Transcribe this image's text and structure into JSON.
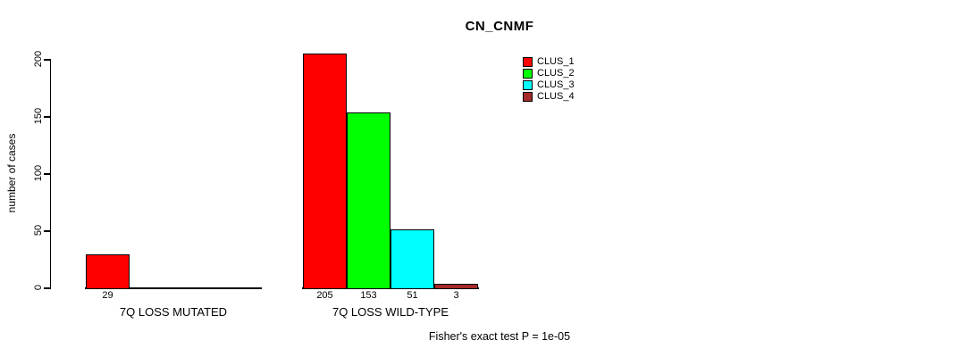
{
  "chart_data": {
    "type": "bar",
    "title": "CN_CNMF",
    "ylabel": "number of cases",
    "xlabel": "",
    "yticks": [
      0,
      50,
      100,
      150,
      200
    ],
    "ylim": [
      0,
      205
    ],
    "grid": false,
    "legend_position": "top-right",
    "series": [
      {
        "name": "CLUS_1",
        "color": "#FF0000"
      },
      {
        "name": "CLUS_2",
        "color": "#00FF00"
      },
      {
        "name": "CLUS_3",
        "color": "#00FFFF"
      },
      {
        "name": "CLUS_4",
        "color": "#A52A2A"
      }
    ],
    "groups": [
      {
        "label": "7Q LOSS MUTATED",
        "values": [
          29,
          0,
          0,
          0
        ],
        "bar_labels": [
          "29",
          "",
          "",
          ""
        ]
      },
      {
        "label": "7Q LOSS WILD-TYPE",
        "values": [
          205,
          153,
          51,
          3
        ],
        "bar_labels": [
          "205",
          "153",
          "51",
          "3"
        ]
      }
    ],
    "annotation": "Fisher's exact test P = 1e-05"
  }
}
